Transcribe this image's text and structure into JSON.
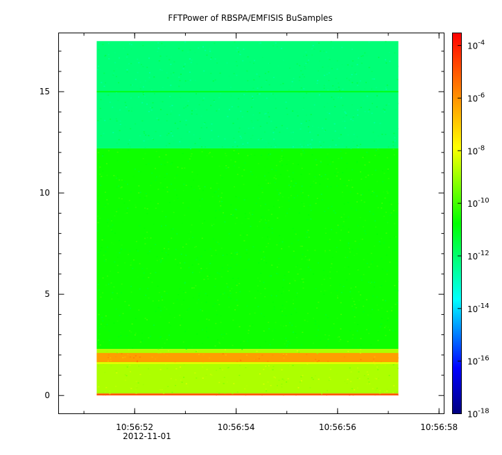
{
  "chart_data": {
    "type": "heatmap",
    "title": "FFTPower of RBSPA/EMFISIS  BuSamples",
    "xlabel": "",
    "ylabel": "",
    "x_axis": {
      "range": [
        "10:56:50.5",
        "10:56:58.1"
      ],
      "major_ticks": [
        "10:56:52",
        "10:56:54",
        "10:56:56",
        "10:56:58"
      ],
      "date_label": "2012-11-01"
    },
    "y_axis": {
      "range": [
        -0.9,
        17.9
      ],
      "ticks": [
        0,
        5,
        10,
        15
      ]
    },
    "data_extent": {
      "time_start": "10:56:51.25",
      "time_end": "10:56:57.2",
      "freq_min": 0.0,
      "freq_max": 17.5
    },
    "colorbar": {
      "scale": "log",
      "colormap": "rainbow",
      "range": [
        1e-18,
        0.0003
      ],
      "tick_bases": [
        "10",
        "10",
        "10",
        "10",
        "10",
        "10",
        "10",
        "10"
      ],
      "tick_exponents": [
        "-4",
        "-6",
        "-8",
        "-10",
        "-12",
        "-14",
        "-16",
        "-18"
      ],
      "tick_values": [
        -4,
        -6,
        -8,
        -10,
        -12,
        -14,
        -16,
        -18
      ]
    },
    "bands": [
      {
        "freq_from": 12.2,
        "freq_to": 17.5,
        "log_power": -12.1
      },
      {
        "freq_from": 2.3,
        "freq_to": 12.2,
        "log_power": -10.6
      },
      {
        "freq_from": 0.1,
        "freq_to": 2.3,
        "log_power": -8.8
      },
      {
        "freq_from": 1.65,
        "freq_to": 2.1,
        "log_power": -6.2
      },
      {
        "freq_from": 0.0,
        "freq_to": 0.1,
        "log_power": -5.0
      }
    ],
    "lines": [
      {
        "freq": 15.0,
        "log_power": -11.0
      },
      {
        "freq": 1.6,
        "log_power": -8.0
      }
    ],
    "grid": false,
    "legend": "colorbar-right"
  },
  "colors": {
    "axis": "#000000",
    "background": "#ffffff"
  }
}
